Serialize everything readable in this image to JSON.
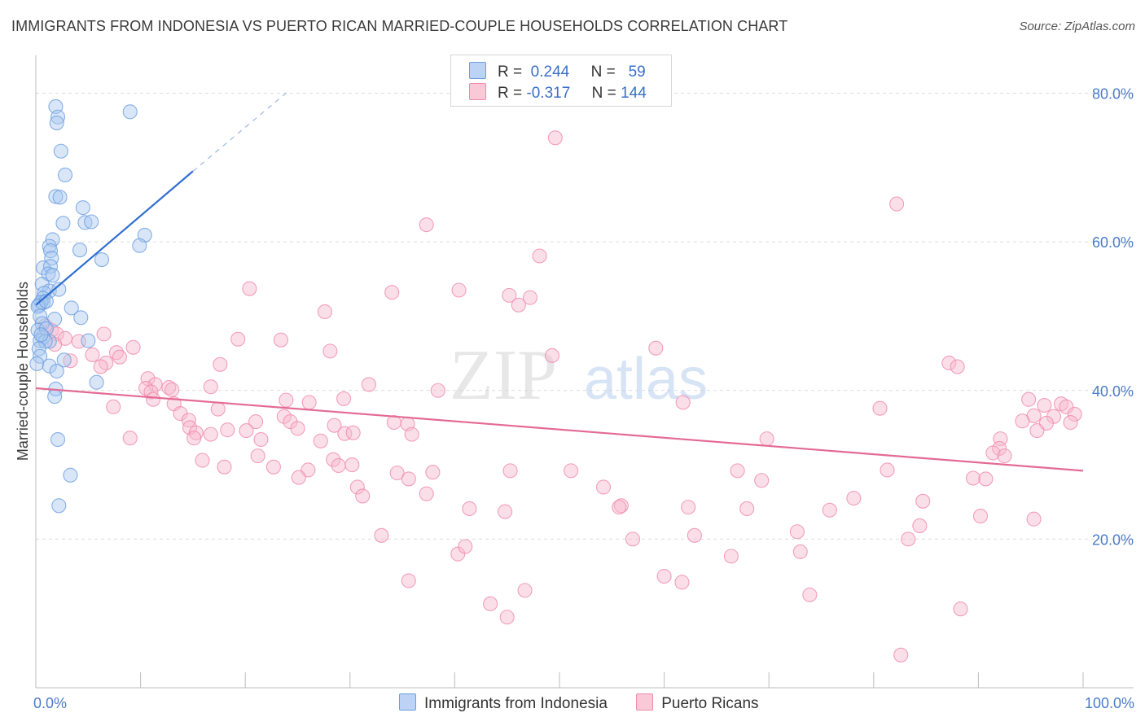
{
  "title": "IMMIGRANTS FROM INDONESIA VS PUERTO RICAN MARRIED-COUPLE HOUSEHOLDS CORRELATION CHART",
  "source": "Source: ZipAtlas.com",
  "watermark": {
    "zip": "ZIP",
    "atlas": "atlas"
  },
  "legend_top": {
    "r_label": "R =",
    "n_label": "N =",
    "rows": [
      {
        "r": "0.244",
        "n": "59"
      },
      {
        "r": "-0.317",
        "n": "144"
      }
    ]
  },
  "chart_data": {
    "type": "scatter",
    "title": "IMMIGRANTS FROM INDONESIA VS PUERTO RICAN MARRIED-COUPLE HOUSEHOLDS CORRELATION CHART",
    "xlabel": "",
    "ylabel": "Married-couple Households",
    "xlim": [
      0,
      100
    ],
    "ylim": [
      0,
      84
    ],
    "x_tick_labels": [
      "0.0%",
      "100.0%"
    ],
    "y_ticks": [
      20,
      40,
      60,
      80
    ],
    "y_tick_labels": [
      "20.0%",
      "40.0%",
      "60.0%",
      "80.0%"
    ],
    "grid": true,
    "legend_position": "bottom",
    "colors": {
      "indonesia": "#6b9de0",
      "puerto_rican": "#f08aab",
      "trend_blue": "#2f6fd1",
      "trend_pink": "#e46a96"
    },
    "series": [
      {
        "name": "Immigrants from Indonesia",
        "color": "#6b9de0",
        "trend": {
          "x": [
            0,
            15
          ],
          "y": [
            51.5,
            69.5
          ],
          "dashed_to": [
            24.3,
            80.5
          ]
        },
        "points": [
          [
            1.9,
            78.2
          ],
          [
            2.1,
            76.8
          ],
          [
            2.0,
            76.0
          ],
          [
            9.0,
            77.5
          ],
          [
            2.4,
            72.2
          ],
          [
            2.8,
            69.0
          ],
          [
            1.9,
            66.1
          ],
          [
            2.3,
            66.0
          ],
          [
            4.5,
            64.6
          ],
          [
            2.6,
            62.5
          ],
          [
            4.7,
            62.6
          ],
          [
            5.3,
            62.7
          ],
          [
            10.4,
            60.9
          ],
          [
            1.6,
            60.3
          ],
          [
            1.3,
            59.4
          ],
          [
            9.9,
            59.5
          ],
          [
            1.4,
            58.8
          ],
          [
            4.2,
            58.9
          ],
          [
            1.5,
            57.8
          ],
          [
            6.3,
            57.6
          ],
          [
            0.7,
            56.5
          ],
          [
            1.4,
            56.7
          ],
          [
            1.2,
            55.7
          ],
          [
            1.6,
            55.5
          ],
          [
            0.6,
            54.3
          ],
          [
            1.3,
            53.4
          ],
          [
            0.8,
            53.1
          ],
          [
            2.2,
            53.6
          ],
          [
            0.7,
            52.4
          ],
          [
            0.7,
            51.8
          ],
          [
            0.3,
            51.5
          ],
          [
            0.5,
            51.9
          ],
          [
            0.2,
            51.3
          ],
          [
            3.4,
            51.1
          ],
          [
            0.4,
            50.0
          ],
          [
            1.8,
            49.6
          ],
          [
            4.3,
            49.8
          ],
          [
            0.6,
            49.0
          ],
          [
            0.2,
            48.1
          ],
          [
            1.0,
            48.3
          ],
          [
            0.7,
            47.2
          ],
          [
            0.4,
            46.7
          ],
          [
            1.3,
            46.6
          ],
          [
            0.9,
            46.6
          ],
          [
            5.0,
            46.7
          ],
          [
            0.3,
            45.6
          ],
          [
            0.4,
            44.6
          ],
          [
            2.7,
            44.1
          ],
          [
            0.1,
            43.6
          ],
          [
            1.3,
            43.3
          ],
          [
            2.0,
            42.6
          ],
          [
            5.8,
            41.1
          ],
          [
            1.9,
            40.2
          ],
          [
            1.8,
            39.2
          ],
          [
            2.1,
            33.4
          ],
          [
            3.3,
            28.6
          ],
          [
            2.2,
            24.5
          ],
          [
            0.5,
            47.5
          ],
          [
            1.0,
            52.0
          ]
        ]
      },
      {
        "name": "Puerto Ricans",
        "color": "#f08aab",
        "trend": {
          "x": [
            0,
            100
          ],
          "y": [
            40.3,
            29.2
          ]
        },
        "points": [
          [
            49.6,
            74.0
          ],
          [
            82.2,
            65.1
          ],
          [
            37.3,
            62.3
          ],
          [
            48.1,
            58.1
          ],
          [
            20.4,
            53.7
          ],
          [
            34.0,
            53.2
          ],
          [
            40.4,
            53.5
          ],
          [
            45.2,
            52.8
          ],
          [
            47.2,
            52.5
          ],
          [
            46.1,
            51.5
          ],
          [
            27.6,
            50.6
          ],
          [
            0.9,
            48.7
          ],
          [
            1.5,
            48.1
          ],
          [
            2.0,
            47.6
          ],
          [
            2.8,
            47.0
          ],
          [
            6.5,
            47.6
          ],
          [
            19.3,
            46.9
          ],
          [
            23.4,
            46.8
          ],
          [
            1.8,
            46.2
          ],
          [
            4.1,
            46.6
          ],
          [
            9.3,
            45.8
          ],
          [
            59.2,
            45.7
          ],
          [
            28.1,
            45.3
          ],
          [
            7.7,
            45.1
          ],
          [
            5.4,
            44.8
          ],
          [
            8.0,
            44.5
          ],
          [
            49.3,
            44.7
          ],
          [
            3.3,
            44.0
          ],
          [
            6.7,
            43.7
          ],
          [
            17.6,
            43.5
          ],
          [
            87.2,
            43.7
          ],
          [
            88.0,
            43.2
          ],
          [
            6.2,
            43.2
          ],
          [
            10.7,
            41.6
          ],
          [
            11.4,
            40.8
          ],
          [
            31.8,
            40.8
          ],
          [
            16.7,
            40.5
          ],
          [
            38.4,
            40.0
          ],
          [
            10.5,
            40.3
          ],
          [
            12.7,
            40.4
          ],
          [
            13.0,
            40.1
          ],
          [
            11.0,
            39.8
          ],
          [
            29.4,
            38.9
          ],
          [
            23.9,
            38.7
          ],
          [
            26.1,
            38.4
          ],
          [
            61.8,
            38.4
          ],
          [
            13.2,
            38.2
          ],
          [
            11.2,
            38.8
          ],
          [
            94.8,
            38.8
          ],
          [
            97.9,
            38.2
          ],
          [
            96.3,
            38.0
          ],
          [
            98.4,
            37.8
          ],
          [
            7.4,
            37.8
          ],
          [
            17.4,
            37.5
          ],
          [
            80.6,
            37.6
          ],
          [
            13.8,
            36.9
          ],
          [
            99.2,
            36.8
          ],
          [
            97.2,
            36.5
          ],
          [
            95.3,
            36.6
          ],
          [
            23.7,
            36.5
          ],
          [
            94.2,
            35.9
          ],
          [
            96.5,
            35.6
          ],
          [
            98.8,
            35.7
          ],
          [
            14.6,
            36.0
          ],
          [
            21.0,
            35.8
          ],
          [
            24.3,
            35.8
          ],
          [
            34.2,
            35.7
          ],
          [
            35.5,
            35.5
          ],
          [
            28.5,
            35.3
          ],
          [
            14.7,
            35.0
          ],
          [
            25.0,
            34.9
          ],
          [
            18.3,
            34.7
          ],
          [
            15.3,
            34.3
          ],
          [
            16.7,
            34.1
          ],
          [
            15.1,
            33.6
          ],
          [
            20.1,
            34.6
          ],
          [
            29.5,
            34.2
          ],
          [
            30.3,
            34.3
          ],
          [
            35.9,
            34.1
          ],
          [
            95.6,
            34.6
          ],
          [
            9.0,
            33.6
          ],
          [
            21.5,
            33.4
          ],
          [
            27.2,
            33.2
          ],
          [
            69.8,
            33.5
          ],
          [
            92.1,
            33.5
          ],
          [
            92.0,
            32.2
          ],
          [
            91.4,
            31.6
          ],
          [
            92.5,
            31.2
          ],
          [
            21.2,
            31.2
          ],
          [
            15.9,
            30.6
          ],
          [
            28.4,
            30.7
          ],
          [
            18.0,
            29.7
          ],
          [
            22.7,
            29.7
          ],
          [
            28.9,
            29.9
          ],
          [
            30.2,
            30.0
          ],
          [
            26.0,
            29.3
          ],
          [
            34.5,
            28.9
          ],
          [
            37.9,
            29.0
          ],
          [
            45.3,
            29.2
          ],
          [
            51.1,
            29.2
          ],
          [
            67.0,
            29.2
          ],
          [
            81.3,
            29.3
          ],
          [
            25.1,
            28.3
          ],
          [
            35.6,
            28.1
          ],
          [
            69.3,
            27.9
          ],
          [
            89.5,
            28.2
          ],
          [
            90.7,
            28.1
          ],
          [
            30.7,
            27.0
          ],
          [
            31.2,
            25.8
          ],
          [
            37.3,
            26.1
          ],
          [
            54.2,
            27.0
          ],
          [
            84.7,
            25.1
          ],
          [
            78.1,
            25.5
          ],
          [
            55.9,
            24.5
          ],
          [
            62.3,
            24.3
          ],
          [
            67.9,
            24.1
          ],
          [
            55.7,
            24.3
          ],
          [
            75.8,
            23.9
          ],
          [
            41.4,
            24.1
          ],
          [
            44.8,
            23.7
          ],
          [
            90.2,
            23.1
          ],
          [
            95.3,
            22.7
          ],
          [
            84.4,
            21.8
          ],
          [
            72.7,
            21.0
          ],
          [
            33.0,
            20.5
          ],
          [
            62.9,
            20.5
          ],
          [
            57.0,
            20.0
          ],
          [
            83.3,
            20.0
          ],
          [
            40.3,
            18.0
          ],
          [
            73.0,
            18.3
          ],
          [
            66.4,
            17.7
          ],
          [
            41.0,
            19.0
          ],
          [
            61.7,
            14.2
          ],
          [
            35.6,
            14.4
          ],
          [
            46.7,
            13.1
          ],
          [
            73.9,
            12.5
          ],
          [
            43.4,
            11.3
          ],
          [
            88.3,
            10.6
          ],
          [
            82.6,
            4.4
          ],
          [
            45.0,
            9.5
          ],
          [
            60.0,
            15.0
          ]
        ]
      }
    ]
  },
  "legend_bottom": [
    {
      "label": "Immigrants from Indonesia"
    },
    {
      "label": "Puerto Ricans"
    }
  ]
}
